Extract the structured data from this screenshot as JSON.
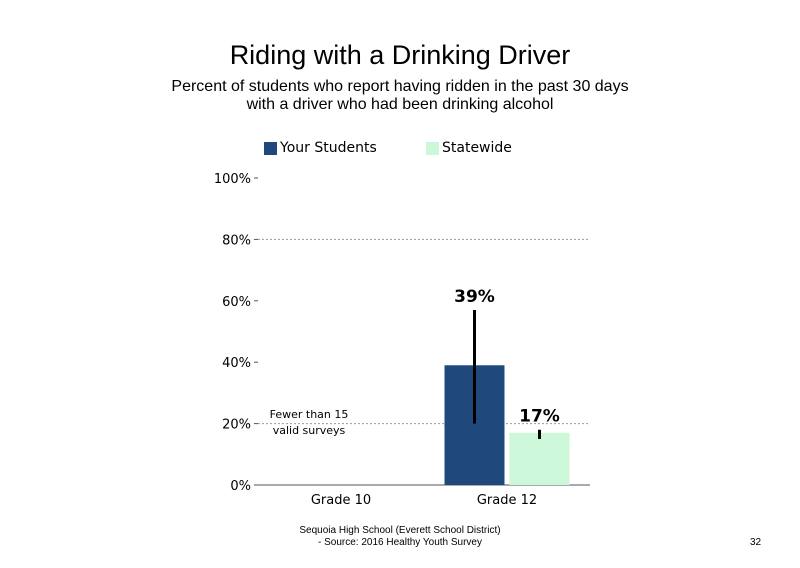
{
  "chart_data": {
    "type": "bar",
    "title": "Riding with a Drinking Driver",
    "subtitle_line1": "Percent of students who report having ridden in the past 30 days",
    "subtitle_line2": "with a driver who had been drinking alcohol",
    "categories": [
      "Grade 10",
      "Grade 12"
    ],
    "series": [
      {
        "name": "Your Students",
        "color": "#1f497d",
        "values": [
          null,
          39
        ],
        "error_low": [
          null,
          20
        ],
        "error_high": [
          null,
          57
        ],
        "labels": [
          "",
          "39%"
        ]
      },
      {
        "name": "Statewide",
        "color": "#ccf7d9",
        "values": [
          null,
          17
        ],
        "error_low": [
          null,
          15
        ],
        "error_high": [
          null,
          18
        ],
        "labels": [
          "",
          "17%"
        ]
      }
    ],
    "ylim": [
      0,
      100
    ],
    "yticks": [
      0,
      20,
      40,
      60,
      80,
      100
    ],
    "ytick_labels": [
      "0%",
      "20%",
      "40%",
      "60%",
      "80%",
      "100%"
    ],
    "gridlines": [
      20,
      80
    ],
    "annotation": "Fewer than 15 valid surveys",
    "legend_position": "top"
  },
  "footer": {
    "line1": "Sequoia High School (Everett School District)",
    "line2": "- Source: 2016 Healthy Youth Survey",
    "page_number": "32"
  }
}
